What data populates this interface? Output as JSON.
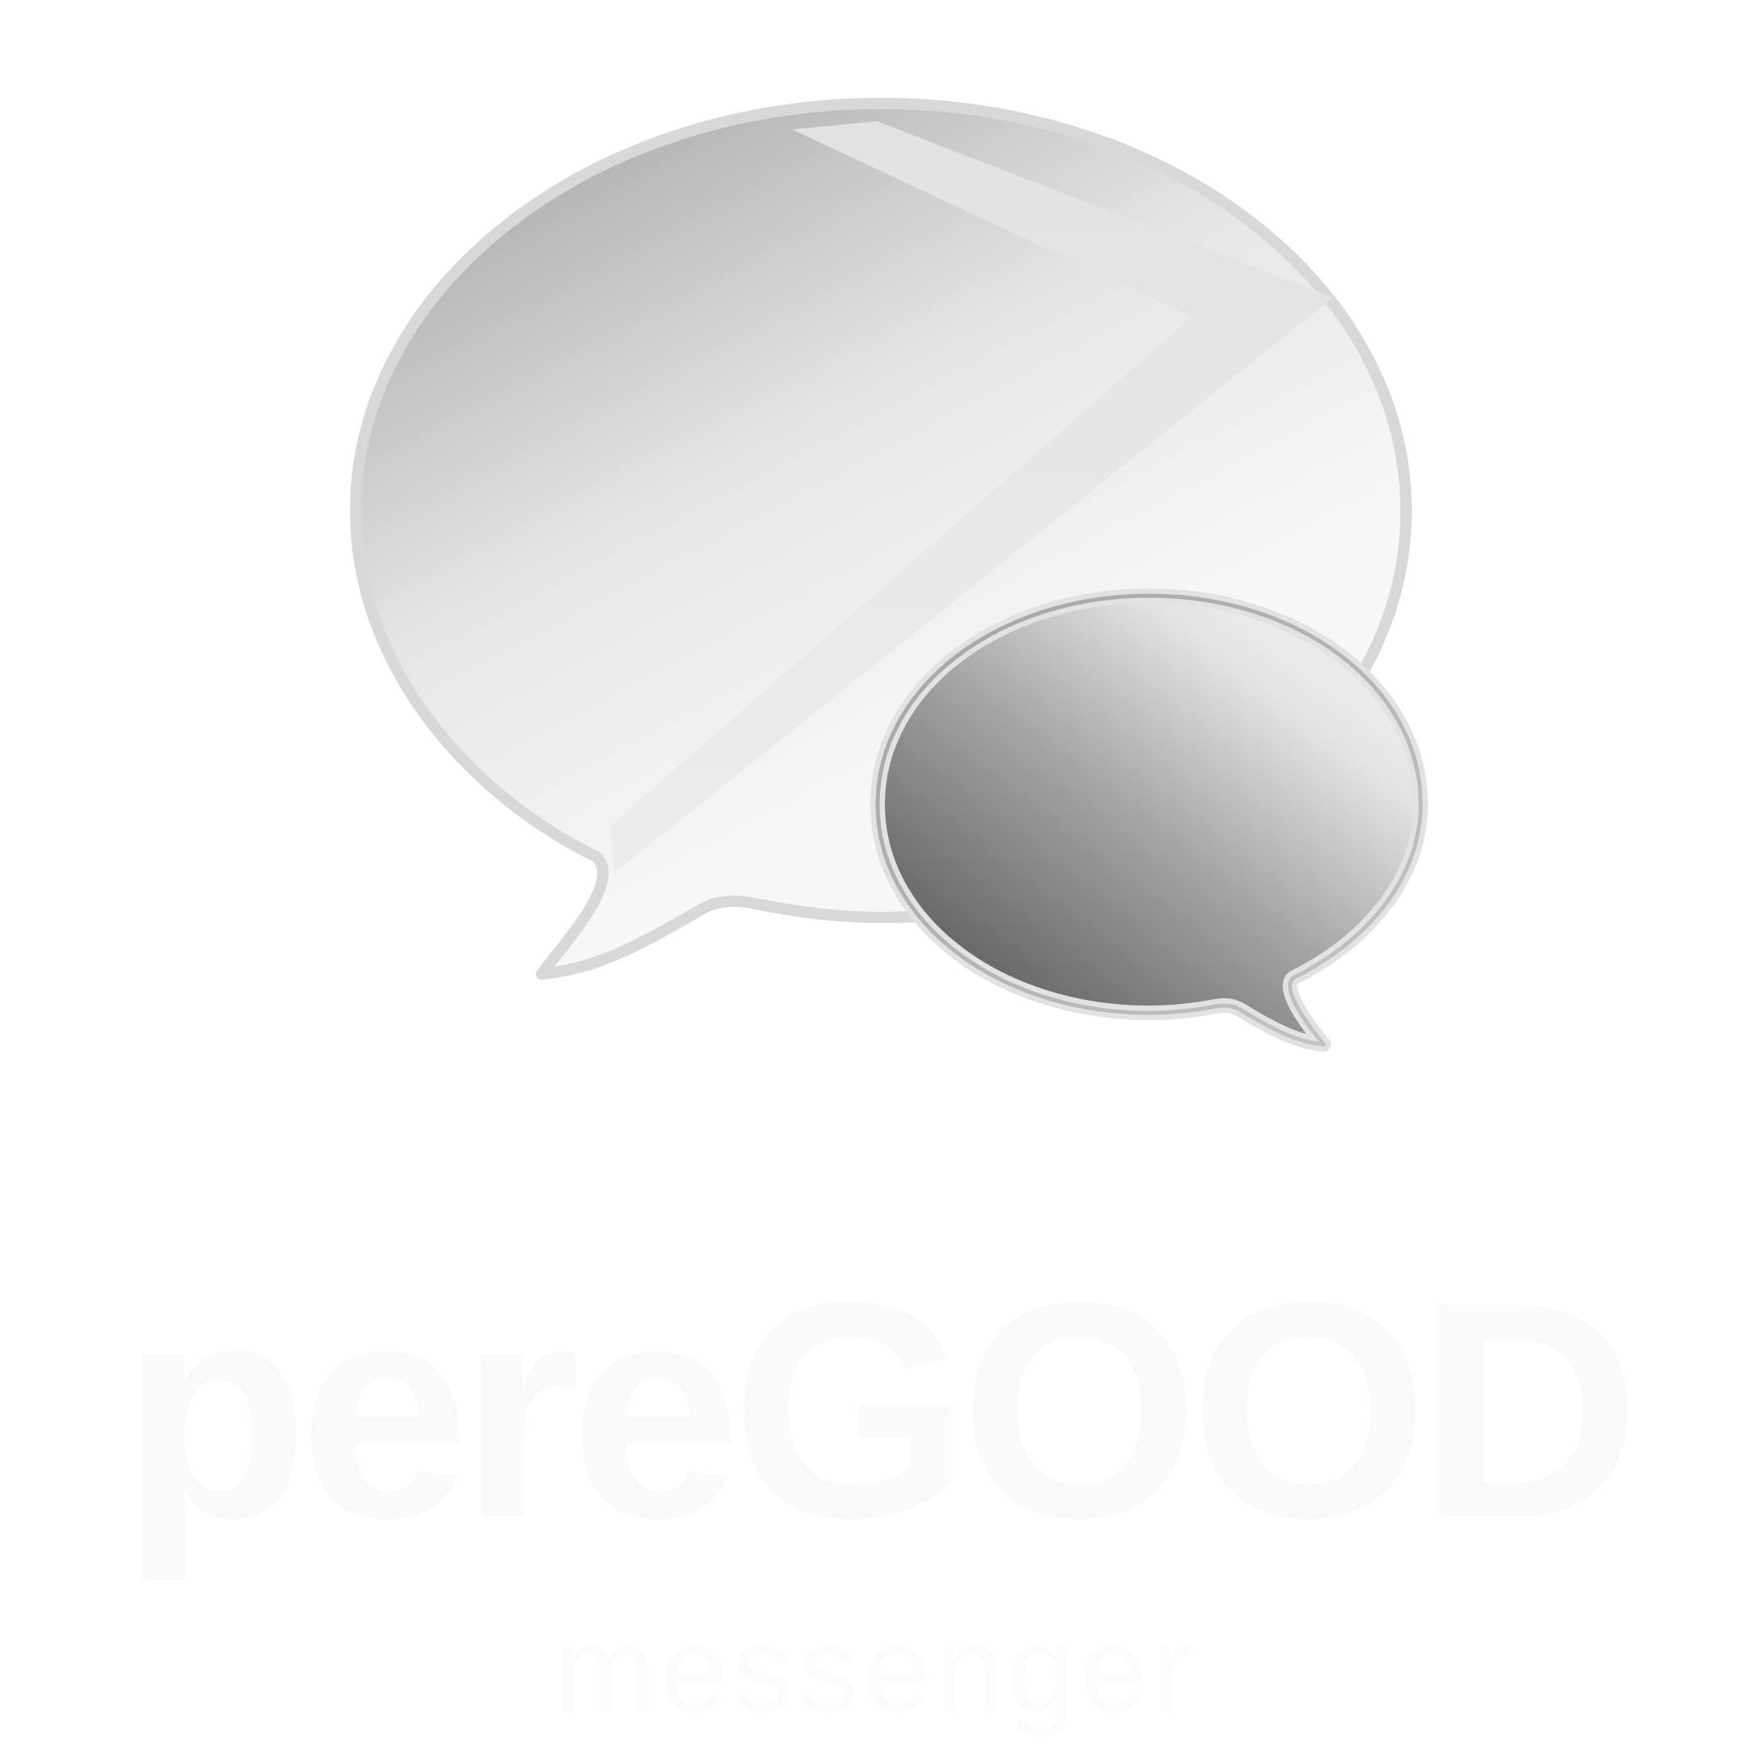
{
  "brand": {
    "name": "pereGOOD",
    "tagline": "messenger"
  },
  "icons": {
    "large_bubble": "speech-bubble-large-icon",
    "small_bubble": "speech-bubble-small-icon",
    "chevron": "chevron-mark-icon"
  },
  "colors": {
    "background": "#ffffff",
    "large_bubble_dark": "#aaaaaa",
    "large_bubble_light": "#f7f7f7",
    "small_bubble_dark": "#666666",
    "small_bubble_light": "#e8e8e8",
    "wordmark": "#f9f9f9"
  }
}
